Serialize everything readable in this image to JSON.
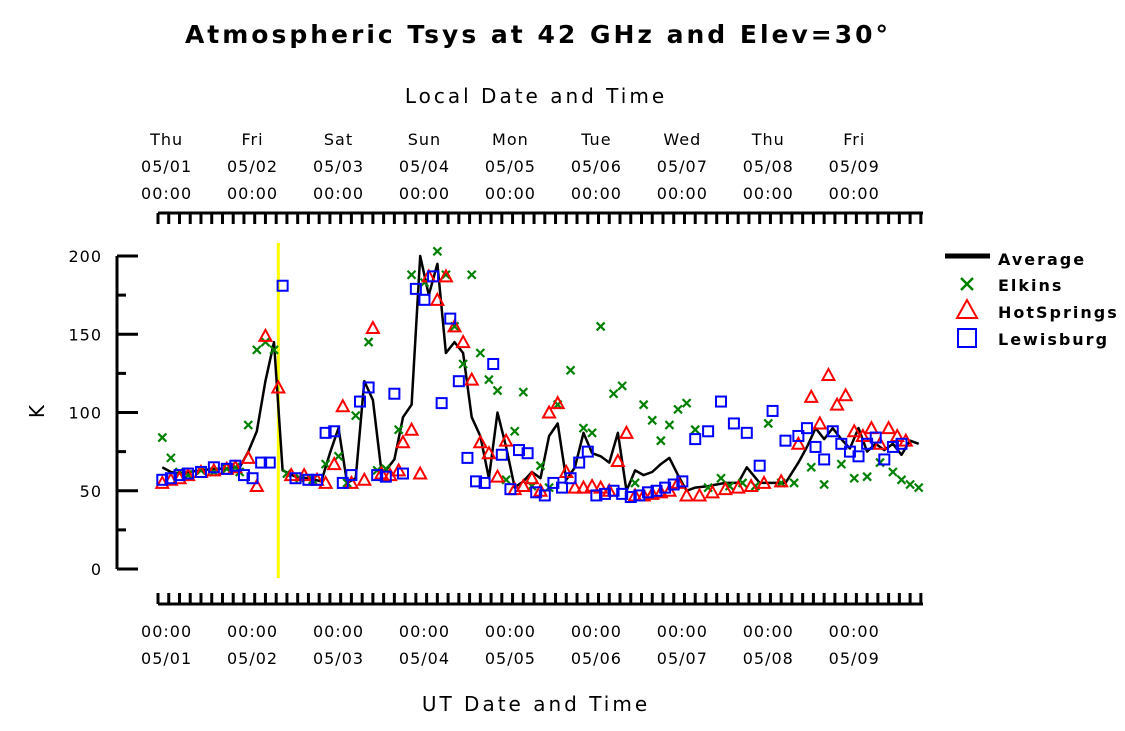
{
  "chart_data": {
    "type": "line",
    "title": "Atmospheric Tsys at 42 GHz and Elev=30°",
    "top_axis_label": "Local Date and Time",
    "xlabel": "UT Date and Time",
    "ylabel": "K",
    "ylim": [
      0,
      200
    ],
    "y_ticks": [
      "0",
      "50",
      "100",
      "150",
      "200"
    ],
    "x_domain_days": [
      -0.1,
      8.8
    ],
    "top_ticks": [
      {
        "day": "Thu",
        "date": "05/01",
        "time": "00:00"
      },
      {
        "day": "Fri",
        "date": "05/02",
        "time": "00:00"
      },
      {
        "day": "Sat",
        "date": "05/03",
        "time": "00:00"
      },
      {
        "day": "Sun",
        "date": "05/04",
        "time": "00:00"
      },
      {
        "day": "Mon",
        "date": "05/05",
        "time": "00:00"
      },
      {
        "day": "Tue",
        "date": "05/06",
        "time": "00:00"
      },
      {
        "day": "Wed",
        "date": "05/07",
        "time": "00:00"
      },
      {
        "day": "Thu",
        "date": "05/08",
        "time": "00:00"
      },
      {
        "day": "Fri",
        "date": "05/09",
        "time": "00:00"
      }
    ],
    "bottom_ticks": [
      {
        "time": "00:00",
        "date": "05/01"
      },
      {
        "time": "00:00",
        "date": "05/02"
      },
      {
        "time": "00:00",
        "date": "05/03"
      },
      {
        "time": "00:00",
        "date": "05/04"
      },
      {
        "time": "00:00",
        "date": "05/05"
      },
      {
        "time": "00:00",
        "date": "05/06"
      },
      {
        "time": "00:00",
        "date": "05/07"
      },
      {
        "time": "00:00",
        "date": "05/08"
      },
      {
        "time": "00:00",
        "date": "05/09"
      }
    ],
    "marker_line": {
      "x": 1.3,
      "color": "#ffff00"
    },
    "legend_position": "right",
    "series": [
      {
        "name": "Average",
        "marker": "line",
        "color": "#000000",
        "x": [
          -0.05,
          0.05,
          0.15,
          0.25,
          0.4,
          0.55,
          0.7,
          0.85,
          0.95,
          1.05,
          1.15,
          1.25,
          1.35,
          1.5,
          1.65,
          1.8,
          1.9,
          2.0,
          2.1,
          2.2,
          2.3,
          2.4,
          2.5,
          2.55,
          2.65,
          2.75,
          2.85,
          2.95,
          3.05,
          3.15,
          3.25,
          3.35,
          3.45,
          3.55,
          3.65,
          3.75,
          3.85,
          3.95,
          4.05,
          4.15,
          4.25,
          4.35,
          4.45,
          4.55,
          4.65,
          4.75,
          4.85,
          4.95,
          5.05,
          5.15,
          5.25,
          5.35,
          5.45,
          5.55,
          5.65,
          5.75,
          5.85,
          5.95,
          6.05,
          6.15,
          6.3,
          6.5,
          6.65,
          6.75,
          6.9,
          7.05,
          7.2,
          7.35,
          7.45,
          7.55,
          7.65,
          7.75,
          7.85,
          7.95,
          8.05,
          8.15,
          8.25,
          8.35,
          8.45,
          8.55,
          8.65,
          8.75
        ],
        "y": [
          65,
          62,
          61,
          62,
          63,
          64,
          64,
          65,
          75,
          88,
          120,
          145,
          63,
          59,
          58,
          56,
          74,
          90,
          55,
          58,
          120,
          108,
          62,
          63,
          70,
          97,
          105,
          200,
          175,
          195,
          138,
          145,
          138,
          97,
          85,
          58,
          100,
          78,
          52,
          56,
          62,
          58,
          85,
          93,
          57,
          65,
          87,
          74,
          72,
          68,
          87,
          50,
          63,
          60,
          62,
          67,
          71,
          60,
          50,
          52,
          53,
          55,
          55,
          65,
          55,
          55,
          55,
          68,
          78,
          90,
          83,
          90,
          83,
          77,
          90,
          75,
          80,
          76,
          80,
          73,
          82,
          80
        ]
      },
      {
        "name": "Elkins",
        "marker": "x",
        "color": "#008000",
        "x": [
          -0.05,
          0.05,
          0.15,
          0.25,
          0.4,
          0.55,
          0.7,
          0.8,
          0.85,
          0.95,
          1.05,
          1.15,
          1.25,
          1.4,
          1.55,
          1.7,
          1.85,
          2.0,
          2.1,
          2.2,
          2.35,
          2.45,
          2.55,
          2.7,
          2.85,
          3.0,
          3.15,
          3.25,
          3.35,
          3.45,
          3.55,
          3.65,
          3.75,
          3.85,
          3.95,
          4.05,
          4.15,
          4.25,
          4.35,
          4.45,
          4.55,
          4.7,
          4.85,
          4.95,
          5.05,
          5.2,
          5.3,
          5.45,
          5.55,
          5.65,
          5.75,
          5.85,
          5.95,
          6.05,
          6.15,
          6.3,
          6.45,
          6.55,
          6.7,
          6.85,
          7.0,
          7.15,
          7.3,
          7.5,
          7.65,
          7.85,
          8.0,
          8.15,
          8.3,
          8.45,
          8.55,
          8.65,
          8.75
        ],
        "y": [
          84,
          71,
          62,
          60,
          63,
          62,
          64,
          65,
          62,
          92,
          140,
          145,
          140,
          61,
          58,
          57,
          67,
          72,
          55,
          98,
          145,
          63,
          64,
          89,
          188,
          183,
          203,
          188,
          155,
          131,
          188,
          138,
          121,
          114,
          57,
          88,
          113,
          53,
          66,
          52,
          105,
          127,
          90,
          87,
          155,
          112,
          117,
          55,
          105,
          95,
          82,
          92,
          102,
          106,
          89,
          52,
          58,
          53,
          55,
          53,
          93,
          55,
          55,
          65,
          54,
          67,
          58,
          59,
          68,
          62,
          57,
          54,
          52
        ]
      },
      {
        "name": "HotSprings",
        "marker": "triangle",
        "color": "#ff0000",
        "x": [
          -0.05,
          0.05,
          0.15,
          0.25,
          0.4,
          0.55,
          0.7,
          0.8,
          0.95,
          1.05,
          1.15,
          1.3,
          1.45,
          1.6,
          1.75,
          1.85,
          1.95,
          2.05,
          2.15,
          2.3,
          2.4,
          2.5,
          2.6,
          2.7,
          2.75,
          2.85,
          2.95,
          3.05,
          3.15,
          3.25,
          3.35,
          3.45,
          3.55,
          3.65,
          3.75,
          3.85,
          3.95,
          4.05,
          4.15,
          4.25,
          4.35,
          4.45,
          4.55,
          4.65,
          4.75,
          4.85,
          4.95,
          5.05,
          5.15,
          5.25,
          5.35,
          5.45,
          5.55,
          5.65,
          5.75,
          5.85,
          5.95,
          6.05,
          6.2,
          6.35,
          6.5,
          6.65,
          6.8,
          6.95,
          7.15,
          7.35,
          7.5,
          7.6,
          7.7,
          7.8,
          7.9,
          8.0,
          8.1,
          8.2,
          8.3,
          8.4,
          8.5,
          8.6
        ],
        "y": [
          55,
          57,
          58,
          60,
          62,
          63,
          64,
          65,
          71,
          53,
          149,
          116,
          60,
          60,
          57,
          55,
          67,
          104,
          55,
          57,
          154,
          61,
          60,
          63,
          81,
          89,
          61,
          187,
          172,
          187,
          155,
          145,
          121,
          81,
          74,
          59,
          82,
          51,
          53,
          58,
          50,
          100,
          106,
          62,
          52,
          52,
          53,
          52,
          50,
          69,
          87,
          47,
          47,
          48,
          49,
          50,
          55,
          47,
          47,
          49,
          51,
          52,
          53,
          55,
          56,
          80,
          110,
          93,
          124,
          105,
          111,
          88,
          85,
          90,
          80,
          90,
          85,
          82
        ]
      },
      {
        "name": "Lewisburg",
        "marker": "square",
        "color": "#0000ff",
        "x": [
          -0.05,
          0.05,
          0.15,
          0.25,
          0.4,
          0.55,
          0.7,
          0.8,
          0.9,
          1.0,
          1.1,
          1.2,
          1.35,
          1.5,
          1.65,
          1.75,
          1.85,
          1.95,
          2.05,
          2.15,
          2.25,
          2.35,
          2.45,
          2.55,
          2.65,
          2.75,
          2.9,
          3.0,
          3.1,
          3.2,
          3.3,
          3.4,
          3.5,
          3.6,
          3.7,
          3.8,
          3.9,
          4.0,
          4.1,
          4.2,
          4.3,
          4.4,
          4.5,
          4.6,
          4.7,
          4.8,
          4.9,
          5.0,
          5.1,
          5.2,
          5.3,
          5.4,
          5.5,
          5.6,
          5.7,
          5.8,
          5.9,
          6.0,
          6.15,
          6.3,
          6.45,
          6.6,
          6.75,
          6.9,
          7.05,
          7.2,
          7.35,
          7.45,
          7.55,
          7.65,
          7.75,
          7.85,
          7.95,
          8.05,
          8.15,
          8.25,
          8.35,
          8.45,
          8.55
        ],
        "y": [
          57,
          58,
          60,
          61,
          62,
          65,
          64,
          66,
          60,
          58,
          68,
          68,
          181,
          58,
          57,
          57,
          87,
          88,
          55,
          60,
          107,
          116,
          60,
          59,
          112,
          61,
          179,
          172,
          187,
          106,
          160,
          120,
          71,
          56,
          55,
          131,
          73,
          51,
          76,
          74,
          49,
          47,
          55,
          52,
          58,
          68,
          75,
          47,
          48,
          50,
          48,
          46,
          47,
          49,
          50,
          52,
          54,
          56,
          83,
          88,
          107,
          93,
          87,
          66,
          101,
          82,
          85,
          90,
          78,
          70,
          88,
          80,
          75,
          72,
          80,
          84,
          70,
          78,
          80
        ]
      }
    ]
  },
  "legend": [
    {
      "label": "Average",
      "marker": "line",
      "color": "#000000"
    },
    {
      "label": "Elkins",
      "marker": "x",
      "color": "#008000"
    },
    {
      "label": "HotSprings",
      "marker": "triangle",
      "color": "#ff0000"
    },
    {
      "label": "Lewisburg",
      "marker": "square",
      "color": "#0000ff"
    }
  ]
}
